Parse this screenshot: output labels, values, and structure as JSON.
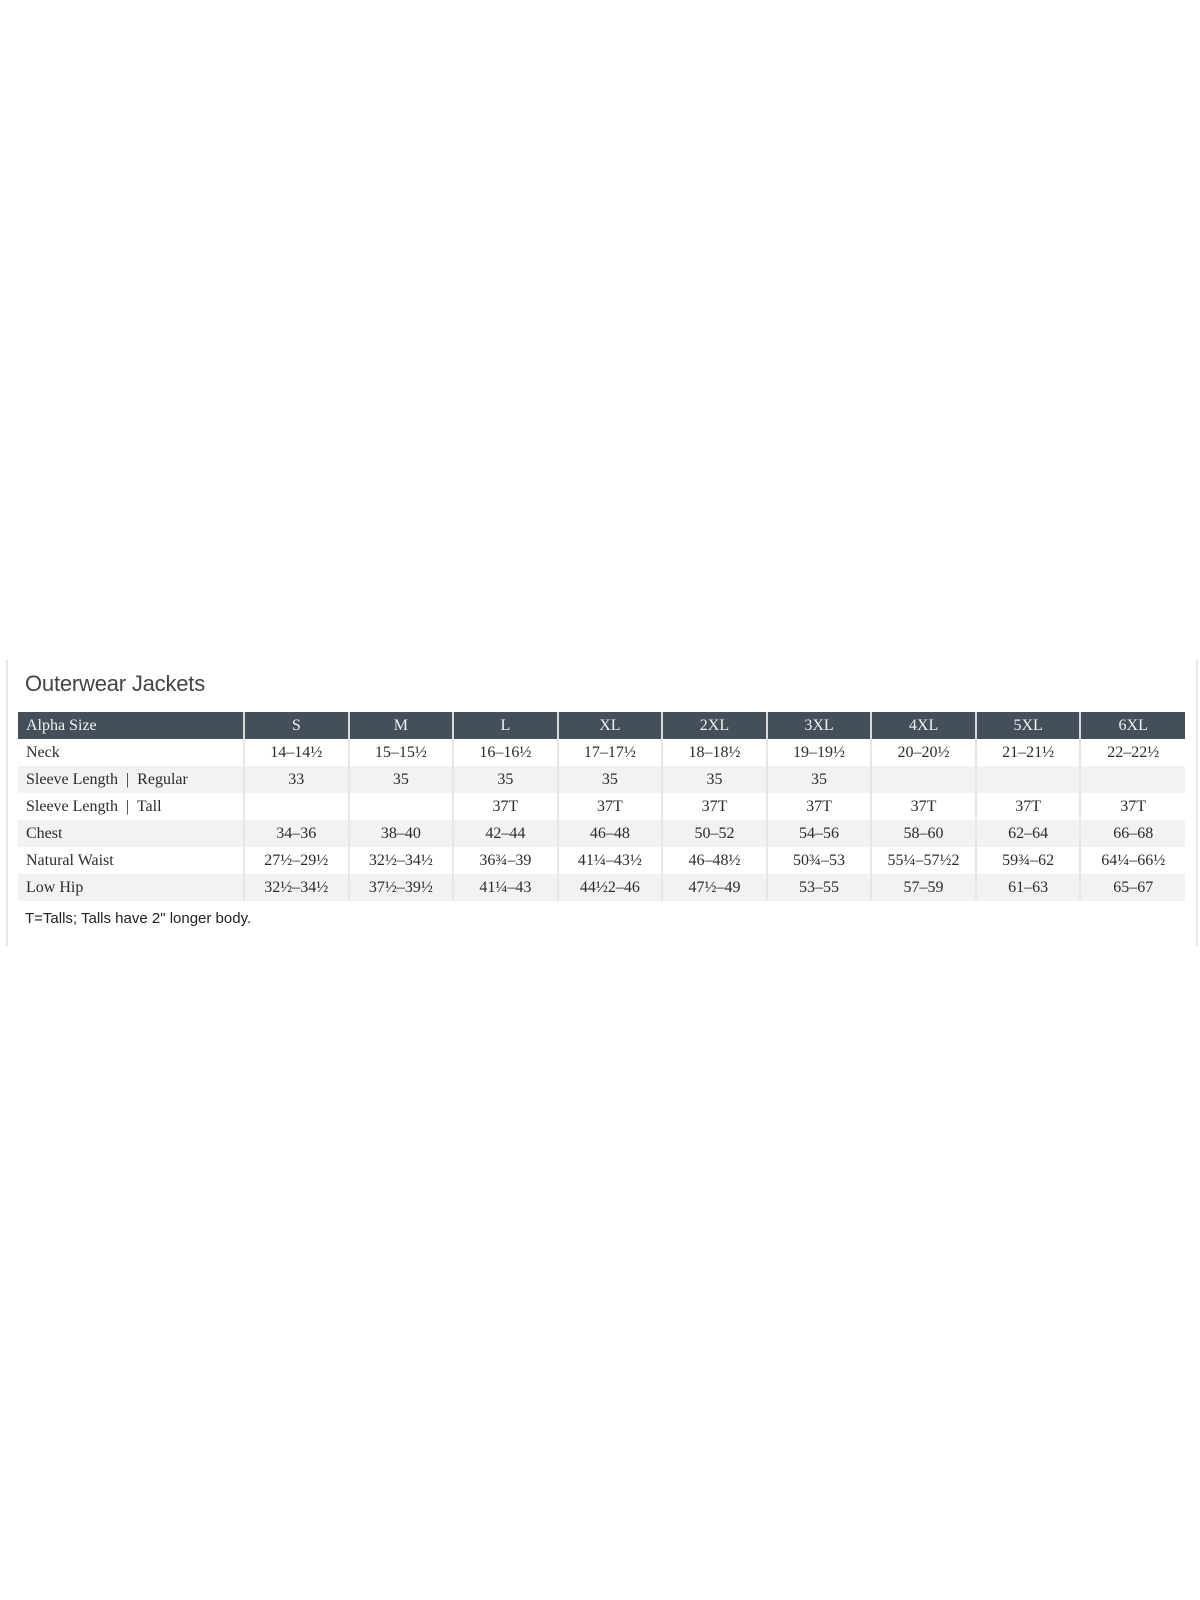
{
  "title": "Outerwear Jackets",
  "header": [
    "Alpha Size",
    "S",
    "M",
    "L",
    "XL",
    "2XL",
    "3XL",
    "4XL",
    "5XL",
    "6XL"
  ],
  "rows": [
    [
      "Neck",
      "14–14½",
      "15–15½",
      "16–16½",
      "17–17½",
      "18–18½",
      "19–19½",
      "20–20½",
      "21–21½",
      "22–22½"
    ],
    [
      "Sleeve Length  |  Regular",
      "33",
      "35",
      "35",
      "35",
      "35",
      "35",
      "",
      "",
      ""
    ],
    [
      "Sleeve Length  |  Tall",
      "",
      "",
      "37T",
      "37T",
      "37T",
      "37T",
      "37T",
      "37T",
      "37T"
    ],
    [
      "Chest",
      "34–36",
      "38–40",
      "42–44",
      "46–48",
      "50–52",
      "54–56",
      "58–60",
      "62–64",
      "66–68"
    ],
    [
      "Natural Waist",
      "27½–29½",
      "32½–34½",
      "36¾–39",
      "41¼–43½",
      "46–48½",
      "50¾–53",
      "55¼–57½2",
      "59¾–62",
      "64¼–66½"
    ],
    [
      "Low Hip",
      "32½–34½",
      "37½–39½",
      "41¼–43",
      "44½2–46",
      "47½–49",
      "53–55",
      "57–59",
      "61–63",
      "65–67"
    ]
  ],
  "footnote": "T=Talls; Talls have 2\" longer body.",
  "colors": {
    "header_bg": "#444f59",
    "alt_row_bg": "#f3f2f0"
  }
}
